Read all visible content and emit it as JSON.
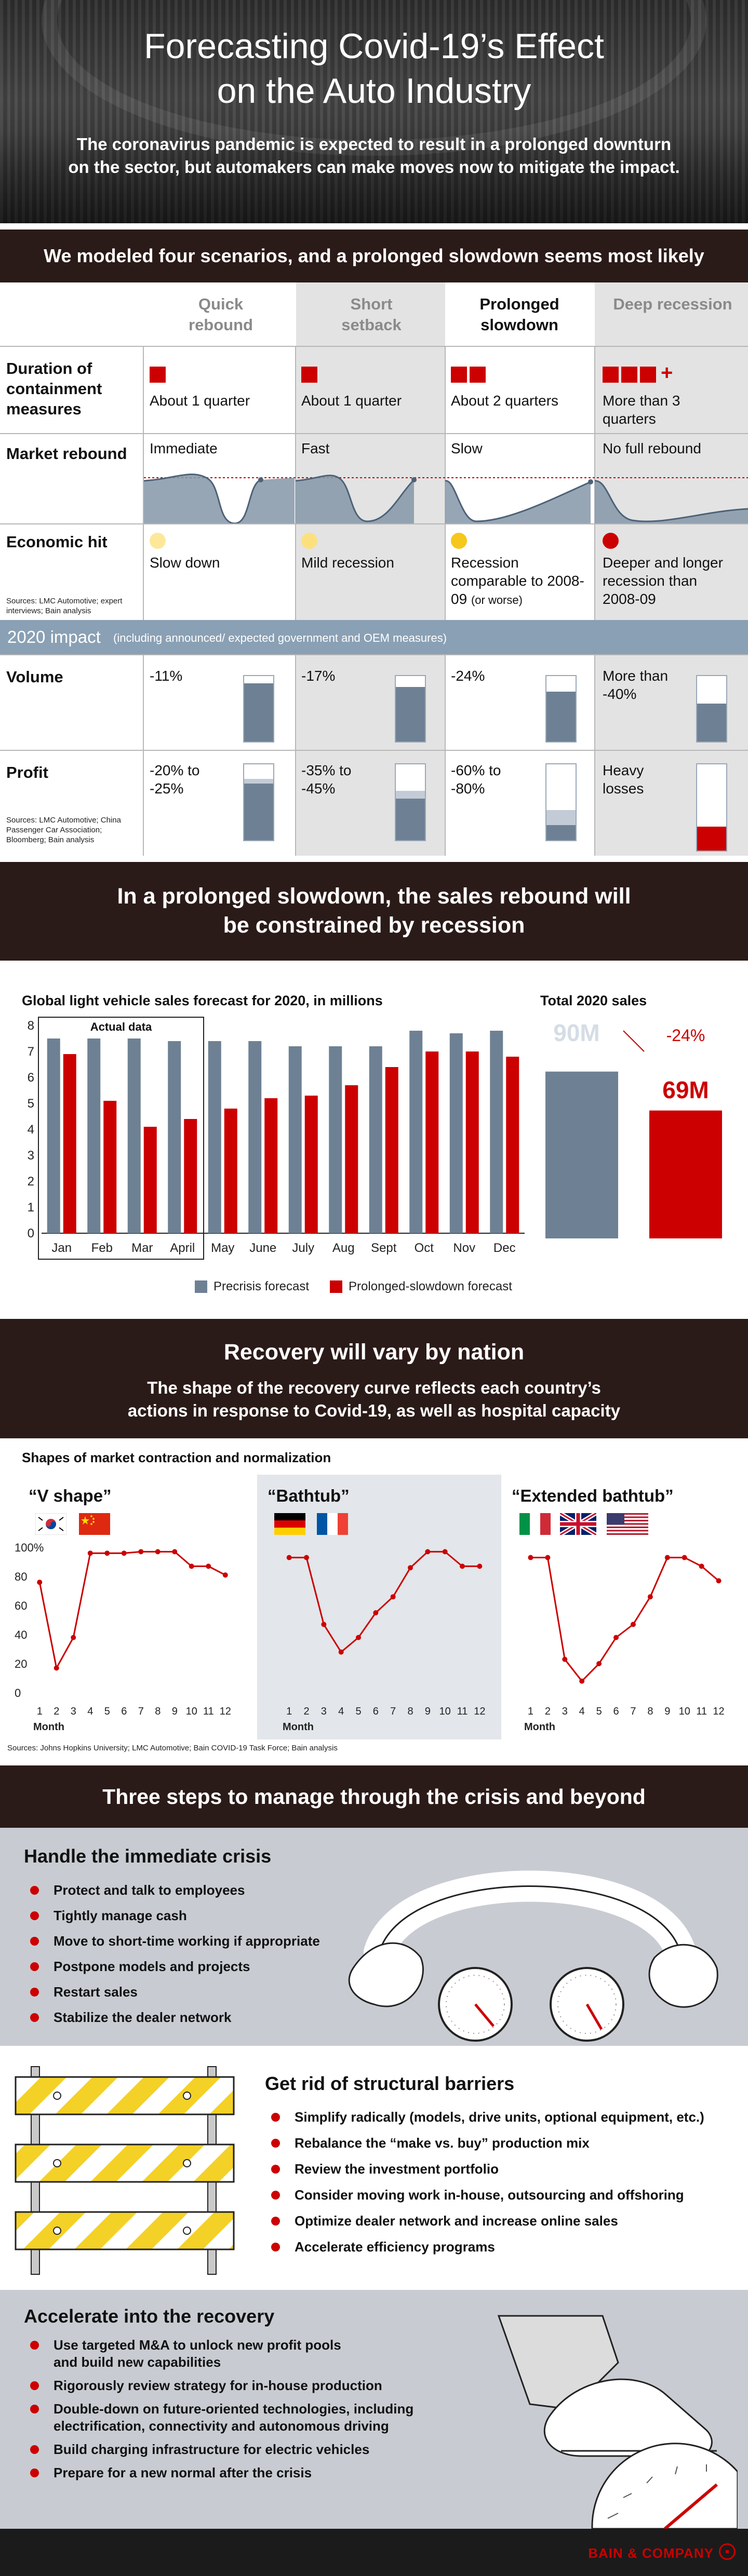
{
  "hero": {
    "title_line1": "Forecasting Covid-19’s Effect",
    "title_line2": "on the Auto Industry",
    "subtitle": "The coronavirus pandemic is expected to result in a prolonged downturn on the sector, but automakers can make moves now to mitigate the impact."
  },
  "scenarios": {
    "title": "We modeled four scenarios, and a prolonged slowdown seems most likely",
    "columns": [
      {
        "name": "Quick rebound",
        "duration": "About 1 quarter",
        "rebound": "Immediate",
        "economic": "Slow down",
        "volume": "-11%",
        "profit": "-20% to -25%"
      },
      {
        "name": "Short setback",
        "duration": "About 1 quarter",
        "rebound": "Fast",
        "economic": "Mild recession",
        "volume": "-17%",
        "profit": "-35% to -45%"
      },
      {
        "name": "Prolonged slowdown",
        "duration": "About 2 quarters",
        "rebound": "Slow",
        "economic": "Recession comparable to 2008-09",
        "economic_note": "(or worse)",
        "volume": "-24%",
        "profit": "-60% to -80%"
      },
      {
        "name": "Deep recession",
        "duration": "More than 3 quarters",
        "rebound": "No full rebound",
        "economic": "Deeper and longer recession than 2008-09",
        "volume": "More than -40%",
        "profit": "Heavy losses"
      }
    ],
    "rows": {
      "duration": "Duration of containment measures",
      "rebound": "Market rebound",
      "economic": "Economic hit",
      "volume": "Volume",
      "profit": "Profit"
    },
    "source1": "Sources: LMC Automotive; expert interviews; Bain analysis",
    "impact_label": "2020 impact",
    "impact_note": "(including announced/ expected government and OEM measures)",
    "source2": "Sources: LMC Automotive; China Passenger Car Association; Bloomberg; Bain analysis",
    "plus_sign": "+"
  },
  "slowdown": {
    "title_line1": "In a prolonged slowdown, the sales rebound will",
    "title_line2": "be constrained by recession"
  },
  "chart_data": [
    {
      "type": "bar",
      "title": "Global light vehicle sales forecast for 2020, in millions",
      "categories": [
        "Jan",
        "Feb",
        "Mar",
        "April",
        "May",
        "June",
        "July",
        "Aug",
        "Sept",
        "Oct",
        "Nov",
        "Dec"
      ],
      "series": [
        {
          "name": "Precrisis forecast",
          "color": "#6e8194",
          "values": [
            7.5,
            7.5,
            7.5,
            7.4,
            7.4,
            7.4,
            7.2,
            7.2,
            7.2,
            7.8,
            7.7,
            7.8
          ]
        },
        {
          "name": "Prolonged-slowdown forecast",
          "color": "#cc0000",
          "values": [
            6.9,
            5.1,
            4.1,
            4.4,
            4.8,
            5.2,
            5.3,
            5.7,
            6.4,
            7.0,
            7.0,
            6.8
          ]
        }
      ],
      "yticks": [
        0,
        1,
        2,
        3,
        4,
        5,
        6,
        7,
        8
      ],
      "ylim": [
        0,
        8
      ],
      "annotation": "Actual data"
    },
    {
      "type": "bar",
      "title": "Total 2020 sales",
      "categories": [
        "Precrisis forecast",
        "Prolonged-slowdown forecast"
      ],
      "values": [
        90,
        69
      ],
      "labels": [
        "90M",
        "69M"
      ],
      "change_label": "-24%"
    },
    {
      "type": "line",
      "title": "Shapes of market contraction and normalization",
      "panels": [
        {
          "name": "“V shape”",
          "flags": [
            "South Korea",
            "China"
          ],
          "x": [
            1,
            2,
            3,
            4,
            5,
            6,
            7,
            8,
            9,
            10,
            11,
            12
          ],
          "y": [
            76,
            17,
            38,
            96,
            96,
            96,
            97,
            97,
            97,
            87,
            87,
            81
          ]
        },
        {
          "name": "“Bathtub”",
          "flags": [
            "Germany",
            "France"
          ],
          "x": [
            1,
            2,
            3,
            4,
            5,
            6,
            7,
            8,
            9,
            10,
            11,
            12
          ],
          "y": [
            93,
            93,
            47,
            28,
            38,
            55,
            66,
            86,
            97,
            97,
            87,
            87
          ]
        },
        {
          "name": "“Extended bathtub”",
          "flags": [
            "Italy",
            "UK",
            "USA"
          ],
          "x": [
            1,
            2,
            3,
            4,
            5,
            6,
            7,
            8,
            9,
            10,
            11,
            12
          ],
          "y": [
            93,
            93,
            23,
            8,
            20,
            38,
            47,
            66,
            93,
            93,
            87,
            77
          ]
        }
      ],
      "xlabel": "Month",
      "yticks": [
        "0",
        "20",
        "40",
        "60",
        "80",
        "100%"
      ],
      "ylim": [
        0,
        100
      ]
    }
  ],
  "charts": {
    "month_bars_title": "Global light vehicle sales forecast for 2020, in millions",
    "actual_data": "Actual data",
    "total_title": "Total 2020 sales",
    "legend_precrisis": "Precrisis forecast",
    "legend_slowdown": "Prolonged-slowdown forecast",
    "months": [
      "Jan",
      "Feb",
      "Mar",
      "April",
      "May",
      "June",
      "July",
      "Aug",
      "Sept",
      "Oct",
      "Nov",
      "Dec"
    ],
    "y_ticks": [
      "0",
      "1",
      "2",
      "3",
      "4",
      "5",
      "6",
      "7",
      "8"
    ],
    "total_pre": "90M",
    "total_slow": "69M",
    "total_change": "-24%"
  },
  "recovery": {
    "title": "Recovery will vary by nation",
    "subtitle_line1": "The shape of the recovery curve reflects each country’s",
    "subtitle_line2": "actions in response to Covid-19, as well as hospital capacity",
    "shapes_title": "Shapes of market contraction and normalization",
    "panel_names": [
      "“V shape”",
      "“Bathtub”",
      "“Extended bathtub”"
    ],
    "y_ticks": [
      "0",
      "20",
      "40",
      "60",
      "80",
      "100%"
    ],
    "x_ticks": [
      "1",
      "2",
      "3",
      "4",
      "5",
      "6",
      "7",
      "8",
      "9",
      "10",
      "11",
      "12"
    ],
    "month_label": "Month",
    "source": "Sources: Johns Hopkins University; LMC Automotive; Bain COVID-19 Task Force; Bain analysis"
  },
  "steps": {
    "title": "Three steps to manage through the crisis and beyond",
    "step1_title": "Handle the immediate crisis",
    "step1_items": [
      "Protect and talk to employees",
      "Tightly manage cash",
      "Move to short-time working if appropriate",
      "Postpone models and projects",
      "Restart sales",
      "Stabilize the dealer network"
    ],
    "step2_title": "Get rid of structural barriers",
    "step2_items": [
      "Simplify radically (models, drive units, optional equipment, etc.)",
      "Rebalance the “make vs. buy” production mix",
      "Review the investment portfolio",
      "Consider moving work in-house, outsourcing and offshoring",
      "Optimize dealer network and increase online sales",
      "Accelerate efficiency programs"
    ],
    "step3_title": "Accelerate into the recovery",
    "step3_items": [
      "Use targeted M&A to unlock new profit pools and build new capabilities",
      "Rigorously review strategy for in-house production",
      "Double-down on future-oriented technologies, including electrification, connectivity and autonomous driving",
      "Build charging infrastructure for electric vehicles",
      "Prepare for a new normal after the crisis"
    ]
  },
  "footer": {
    "brand": "BAIN & COMPANY"
  },
  "colors": {
    "red": "#cc0000",
    "steel": "#6e8194",
    "dark_band": "#2b1b18",
    "grey_column": "#e3e3e3",
    "impact_band": "#8aa0b4",
    "steps_grey": "#c8ccd2"
  }
}
